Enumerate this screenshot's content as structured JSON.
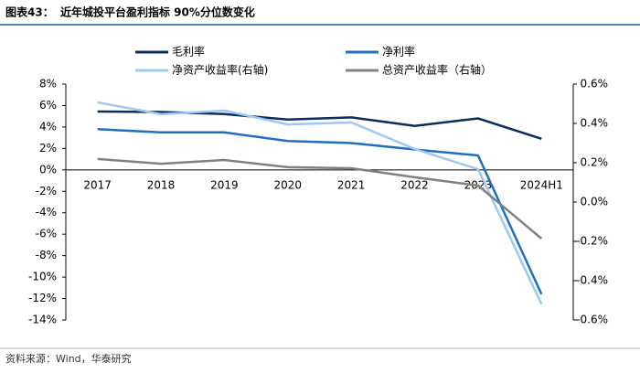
{
  "title_label": "图表43：",
  "source": "资料来源：Wind，华泰研究",
  "chart_data": {
    "type": "line",
    "title": "近年城投平台盈利指标 90%分位数变化",
    "categories": [
      "2017",
      "2018",
      "2019",
      "2020",
      "2021",
      "2022",
      "2023",
      "2024H1"
    ],
    "series": [
      {
        "name": "毛利率",
        "color": "#0b2c5c",
        "values": [
          5.44,
          5.4,
          5.2,
          4.7,
          4.9,
          4.1,
          4.8,
          2.9
        ]
      },
      {
        "name": "净利率",
        "color": "#1f6fbf",
        "values": [
          3.8,
          3.5,
          3.5,
          2.7,
          2.5,
          1.9,
          1.35,
          -11.6
        ]
      },
      {
        "name": "净资产收益率(右轴)",
        "color": "#9dc9f0",
        "axis": "y2",
        "values": [
          0.507,
          0.447,
          0.465,
          0.395,
          0.405,
          0.27,
          0.167,
          -0.52
        ]
      },
      {
        "name": "总资产收益率（右轴）",
        "color": "#808080",
        "axis": "y2",
        "values": [
          0.219,
          0.195,
          0.214,
          0.177,
          0.172,
          0.126,
          0.084,
          -0.186
        ]
      }
    ],
    "ylim": [
      -14,
      8
    ],
    "yticks": [
      {
        "value": -14,
        "label": "-14%"
      },
      {
        "value": -12,
        "label": "-12%"
      },
      {
        "value": -10,
        "label": "-10%"
      },
      {
        "value": -8,
        "label": "-8%"
      },
      {
        "value": -6,
        "label": "-6%"
      },
      {
        "value": -4,
        "label": "-4%"
      },
      {
        "value": -2,
        "label": "-2%"
      },
      {
        "value": 0,
        "label": "0%"
      },
      {
        "value": 2,
        "label": "2%"
      },
      {
        "value": 4,
        "label": "4%"
      },
      {
        "value": 6,
        "label": "6%"
      },
      {
        "value": 8,
        "label": "8%"
      }
    ],
    "y2lim": [
      -0.6,
      0.6
    ],
    "y2ticks": [
      {
        "value": -0.6,
        "label": "-0.6%"
      },
      {
        "value": -0.4,
        "label": "-0.4%"
      },
      {
        "value": -0.2,
        "label": "-0.2%"
      },
      {
        "value": 0,
        "label": "0.0%"
      },
      {
        "value": 0.2,
        "label": "0.2%"
      },
      {
        "value": 0.4,
        "label": "0.4%"
      },
      {
        "value": 0.6,
        "label": "0.6%"
      }
    ],
    "legend": "top",
    "grid": false
  }
}
